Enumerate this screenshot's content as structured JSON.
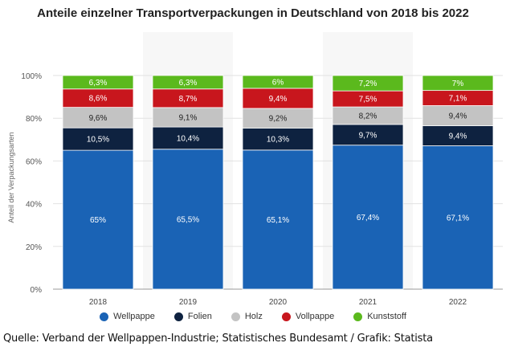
{
  "title": "Anteile einzelner Transportverpackungen in Deutschland von 2018 bis 2022",
  "source": "Quelle: Verband der Wellpappen-Industrie; Statistisches Bundesamt / Grafik: Statista",
  "chart_data": {
    "type": "bar",
    "stacked": true,
    "title": "Anteile einzelner Transportverpackungen in Deutschland von 2018 bis 2022",
    "xlabel": "",
    "ylabel": "Anteil der Verpackungsarten",
    "ylim": [
      0,
      100
    ],
    "yticks": [
      "0%",
      "20%",
      "40%",
      "60%",
      "80%",
      "100%"
    ],
    "grid": true,
    "legend": "bottom",
    "categories": [
      "2018",
      "2019",
      "2020",
      "2021",
      "2022"
    ],
    "series": [
      {
        "name": "Wellpappe",
        "color": "#1a63b5",
        "label_color": "#ffffff",
        "values": [
          65,
          65.5,
          65.1,
          67.4,
          67.1
        ],
        "labels": [
          "65%",
          "65,5%",
          "65,1%",
          "67,4%",
          "67,1%"
        ]
      },
      {
        "name": "Folien",
        "color": "#0e2240",
        "label_color": "#ffffff",
        "values": [
          10.5,
          10.4,
          10.3,
          9.7,
          9.4
        ],
        "labels": [
          "10,5%",
          "10,4%",
          "10,3%",
          "9,7%",
          "9,4%"
        ]
      },
      {
        "name": "Holz",
        "color": "#c3c3c3",
        "label_color": "#222222",
        "values": [
          9.6,
          9.1,
          9.2,
          8.2,
          9.4
        ],
        "labels": [
          "9,6%",
          "9,1%",
          "9,2%",
          "8,2%",
          "9,4%"
        ]
      },
      {
        "name": "Vollpappe",
        "color": "#c8161d",
        "label_color": "#ffffff",
        "values": [
          8.6,
          8.7,
          9.4,
          7.5,
          7.1
        ],
        "labels": [
          "8,6%",
          "8,7%",
          "9,4%",
          "7,5%",
          "7,1%"
        ]
      },
      {
        "name": "Kunststoff",
        "color": "#5bb91d",
        "label_color": "#ffffff",
        "values": [
          6.3,
          6.3,
          6,
          7.2,
          7
        ],
        "labels": [
          "6,3%",
          "6,3%",
          "6%",
          "7,2%",
          "7%"
        ]
      }
    ]
  }
}
